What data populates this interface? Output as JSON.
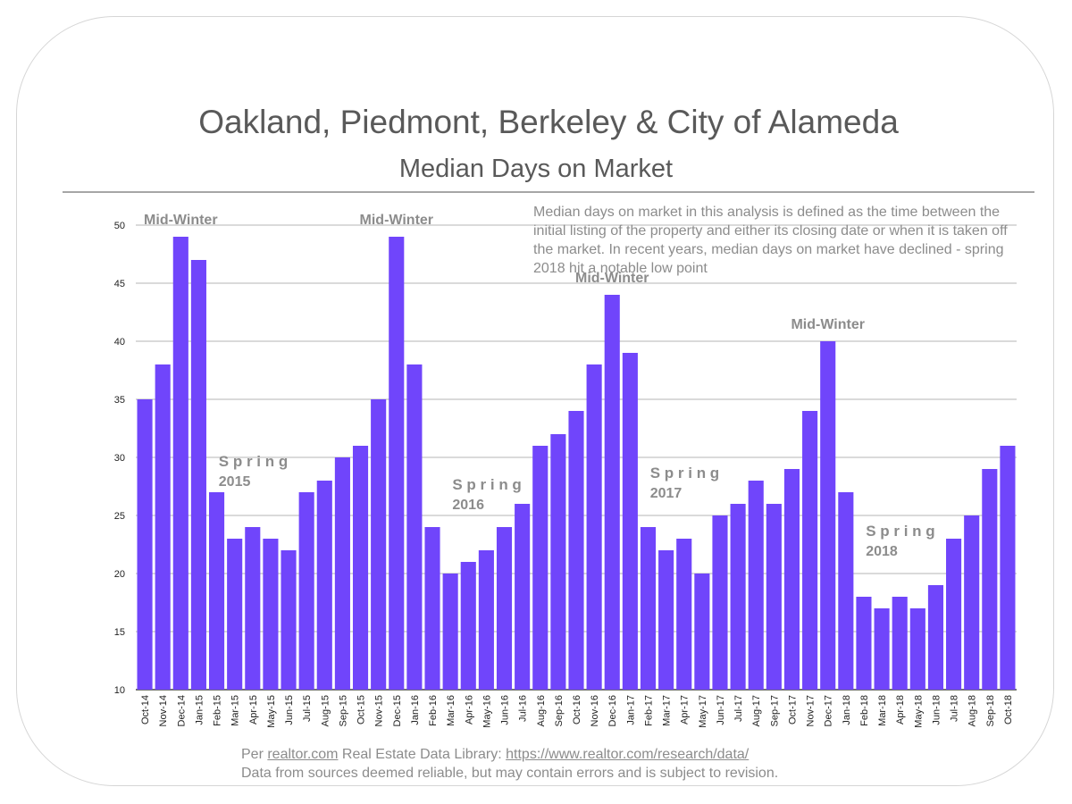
{
  "chart_data": {
    "type": "bar",
    "title": "Oakland, Piedmont, Berkeley & City of Alameda",
    "subtitle": "Median Days on Market",
    "xlabel": "",
    "ylabel": "",
    "ylim": [
      10,
      50
    ],
    "yticks": [
      10,
      15,
      20,
      25,
      30,
      35,
      40,
      45,
      50
    ],
    "grid": true,
    "bar_color": "#7045fb",
    "categories": [
      "Oct-14",
      "Nov-14",
      "Dec-14",
      "Jan-15",
      "Feb-15",
      "Mar-15",
      "Apr-15",
      "May-15",
      "Jun-15",
      "Jul-15",
      "Aug-15",
      "Sep-15",
      "Oct-15",
      "Nov-15",
      "Dec-15",
      "Jan-16",
      "Feb-16",
      "Mar-16",
      "Apr-16",
      "May-16",
      "Jun-16",
      "Jul-16",
      "Aug-16",
      "Sep-16",
      "Oct-16",
      "Nov-16",
      "Dec-16",
      "Jan-17",
      "Feb-17",
      "Mar-17",
      "Apr-17",
      "May-17",
      "Jun-17",
      "Jul-17",
      "Aug-17",
      "Sep-17",
      "Oct-17",
      "Nov-17",
      "Dec-17",
      "Jan-18",
      "Feb-18",
      "Mar-18",
      "Apr-18",
      "May-18",
      "Jun-18",
      "Jul-18",
      "Aug-18",
      "Sep-18",
      "Oct-18"
    ],
    "values": [
      35,
      38,
      49,
      47,
      27,
      23,
      24,
      23,
      22,
      27,
      28,
      30,
      31,
      35,
      49,
      38,
      24,
      20,
      21,
      22,
      24,
      26,
      31,
      32,
      34,
      38,
      44,
      39,
      24,
      22,
      23,
      20,
      25,
      26,
      28,
      26,
      29,
      34,
      40,
      27,
      18,
      17,
      18,
      17,
      19,
      23,
      25,
      29,
      31
    ],
    "annotations": [
      {
        "text": "Mid-Winter",
        "category": "Dec-14"
      },
      {
        "text": "Mid-Winter",
        "category": "Dec-15"
      },
      {
        "text": "Mid-Winter",
        "category": "Dec-16"
      },
      {
        "text": "Mid-Winter",
        "category": "Dec-17"
      },
      {
        "text": "S p r i n g",
        "year": "2015",
        "category": "Apr-15"
      },
      {
        "text": "S p r i n g",
        "year": "2016",
        "category": "May-16"
      },
      {
        "text": "S p r i n g",
        "year": "2017",
        "category": "Apr-17"
      },
      {
        "text": "S p r i n g",
        "year": "2018",
        "category": "Apr-18"
      }
    ]
  },
  "note": "Median days on market in this analysis is defined as the time between the initial listing of the property and either its closing date or when it is taken off the market.  In recent years, median days on market have declined - spring 2018 hit a notable low point",
  "footer": {
    "prefix": "Per ",
    "source_link": "realtor.com",
    "middle": " Real Estate Data Library: ",
    "url": "https://www.realtor.com/research/data/",
    "line2": "Data from sources deemed reliable, but may contain errors and is subject to revision."
  }
}
